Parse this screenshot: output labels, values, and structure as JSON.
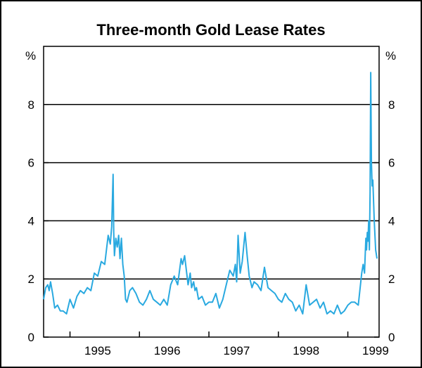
{
  "colors": {
    "line": "#29a9e0",
    "axes": "#000000",
    "background": "#ffffff"
  },
  "chart_data": {
    "type": "line",
    "title": "Three-month Gold Lease Rates",
    "ylabel_left": "%",
    "ylabel_right": "%",
    "ylim": [
      0,
      10
    ],
    "yticks": [
      0,
      2,
      4,
      6,
      8
    ],
    "ytick_labels": [
      "0",
      "2",
      "4",
      "6",
      "8"
    ],
    "gridlines_y": [
      2,
      4,
      6,
      8
    ],
    "xlim": [
      1994.62,
      1999.45
    ],
    "x_category_labels": [
      {
        "label": "1995",
        "x": 1995.5
      },
      {
        "label": "1996",
        "x": 1996.5
      },
      {
        "label": "1997",
        "x": 1997.5
      },
      {
        "label": "1998",
        "x": 1998.5
      },
      {
        "label": "1999",
        "x": 1999.5
      }
    ],
    "x_year_boundaries": [
      1995,
      1996,
      1997,
      1998,
      1999
    ],
    "series": [
      {
        "name": "Three-month gold lease rate",
        "x": [
          1994.62,
          1994.65,
          1994.68,
          1994.7,
          1994.72,
          1994.75,
          1994.78,
          1994.82,
          1994.86,
          1994.9,
          1994.95,
          1995.0,
          1995.05,
          1995.1,
          1995.15,
          1995.2,
          1995.25,
          1995.3,
          1995.35,
          1995.4,
          1995.45,
          1995.5,
          1995.55,
          1995.58,
          1995.6,
          1995.62,
          1995.63,
          1995.64,
          1995.66,
          1995.68,
          1995.7,
          1995.72,
          1995.74,
          1995.76,
          1995.78,
          1995.8,
          1995.82,
          1995.84,
          1995.86,
          1995.9,
          1995.95,
          1996.0,
          1996.05,
          1996.1,
          1996.15,
          1996.2,
          1996.25,
          1996.3,
          1996.35,
          1996.4,
          1996.45,
          1996.5,
          1996.55,
          1996.6,
          1996.62,
          1996.65,
          1996.7,
          1996.73,
          1996.75,
          1996.78,
          1996.8,
          1996.82,
          1996.85,
          1996.9,
          1996.95,
          1997.0,
          1997.05,
          1997.1,
          1997.15,
          1997.2,
          1997.25,
          1997.3,
          1997.35,
          1997.38,
          1997.4,
          1997.42,
          1997.45,
          1997.48,
          1997.5,
          1997.52,
          1997.55,
          1997.58,
          1997.6,
          1997.62,
          1997.65,
          1997.7,
          1997.75,
          1997.8,
          1997.85,
          1997.9,
          1997.95,
          1998.0,
          1998.05,
          1998.1,
          1998.15,
          1998.2,
          1998.25,
          1998.3,
          1998.35,
          1998.4,
          1998.45,
          1998.5,
          1998.55,
          1998.6,
          1998.65,
          1998.7,
          1998.75,
          1998.8,
          1998.85,
          1998.9,
          1998.95,
          1999.0,
          1999.05,
          1999.1,
          1999.15,
          1999.2,
          1999.22,
          1999.24,
          1999.25,
          1999.26,
          1999.27,
          1999.28,
          1999.29,
          1999.3,
          1999.31,
          1999.32,
          1999.33,
          1999.34,
          1999.35,
          1999.36,
          1999.38,
          1999.4,
          1999.42
        ],
        "values": [
          1.3,
          1.7,
          1.8,
          1.6,
          1.9,
          1.5,
          1.0,
          1.1,
          0.9,
          0.9,
          0.8,
          1.3,
          1.0,
          1.4,
          1.6,
          1.5,
          1.7,
          1.6,
          2.2,
          2.1,
          2.6,
          2.5,
          3.5,
          3.2,
          3.8,
          5.6,
          3.6,
          2.8,
          3.4,
          3.1,
          3.5,
          2.7,
          3.4,
          2.5,
          2.1,
          1.3,
          1.2,
          1.4,
          1.6,
          1.7,
          1.5,
          1.2,
          1.1,
          1.3,
          1.6,
          1.3,
          1.2,
          1.1,
          1.3,
          1.1,
          1.8,
          2.1,
          1.8,
          2.7,
          2.5,
          2.8,
          1.8,
          2.2,
          1.7,
          1.9,
          1.6,
          1.7,
          1.3,
          1.4,
          1.1,
          1.2,
          1.2,
          1.5,
          1.0,
          1.3,
          1.8,
          2.3,
          2.1,
          2.5,
          1.9,
          3.5,
          2.2,
          2.6,
          3.1,
          3.6,
          2.8,
          2.1,
          1.9,
          1.7,
          1.9,
          1.8,
          1.6,
          2.4,
          1.7,
          1.6,
          1.5,
          1.3,
          1.2,
          1.5,
          1.3,
          1.2,
          0.9,
          1.1,
          0.8,
          1.8,
          1.1,
          1.2,
          1.3,
          1.0,
          1.2,
          0.8,
          0.9,
          0.8,
          1.1,
          0.8,
          0.9,
          1.1,
          1.2,
          1.2,
          1.1,
          2.2,
          2.5,
          2.2,
          2.8,
          3.4,
          3.0,
          3.6,
          3.3,
          4.0,
          3.0,
          5.0,
          9.1,
          6.0,
          5.2,
          5.4,
          4.0,
          3.0,
          2.7
        ]
      }
    ]
  }
}
